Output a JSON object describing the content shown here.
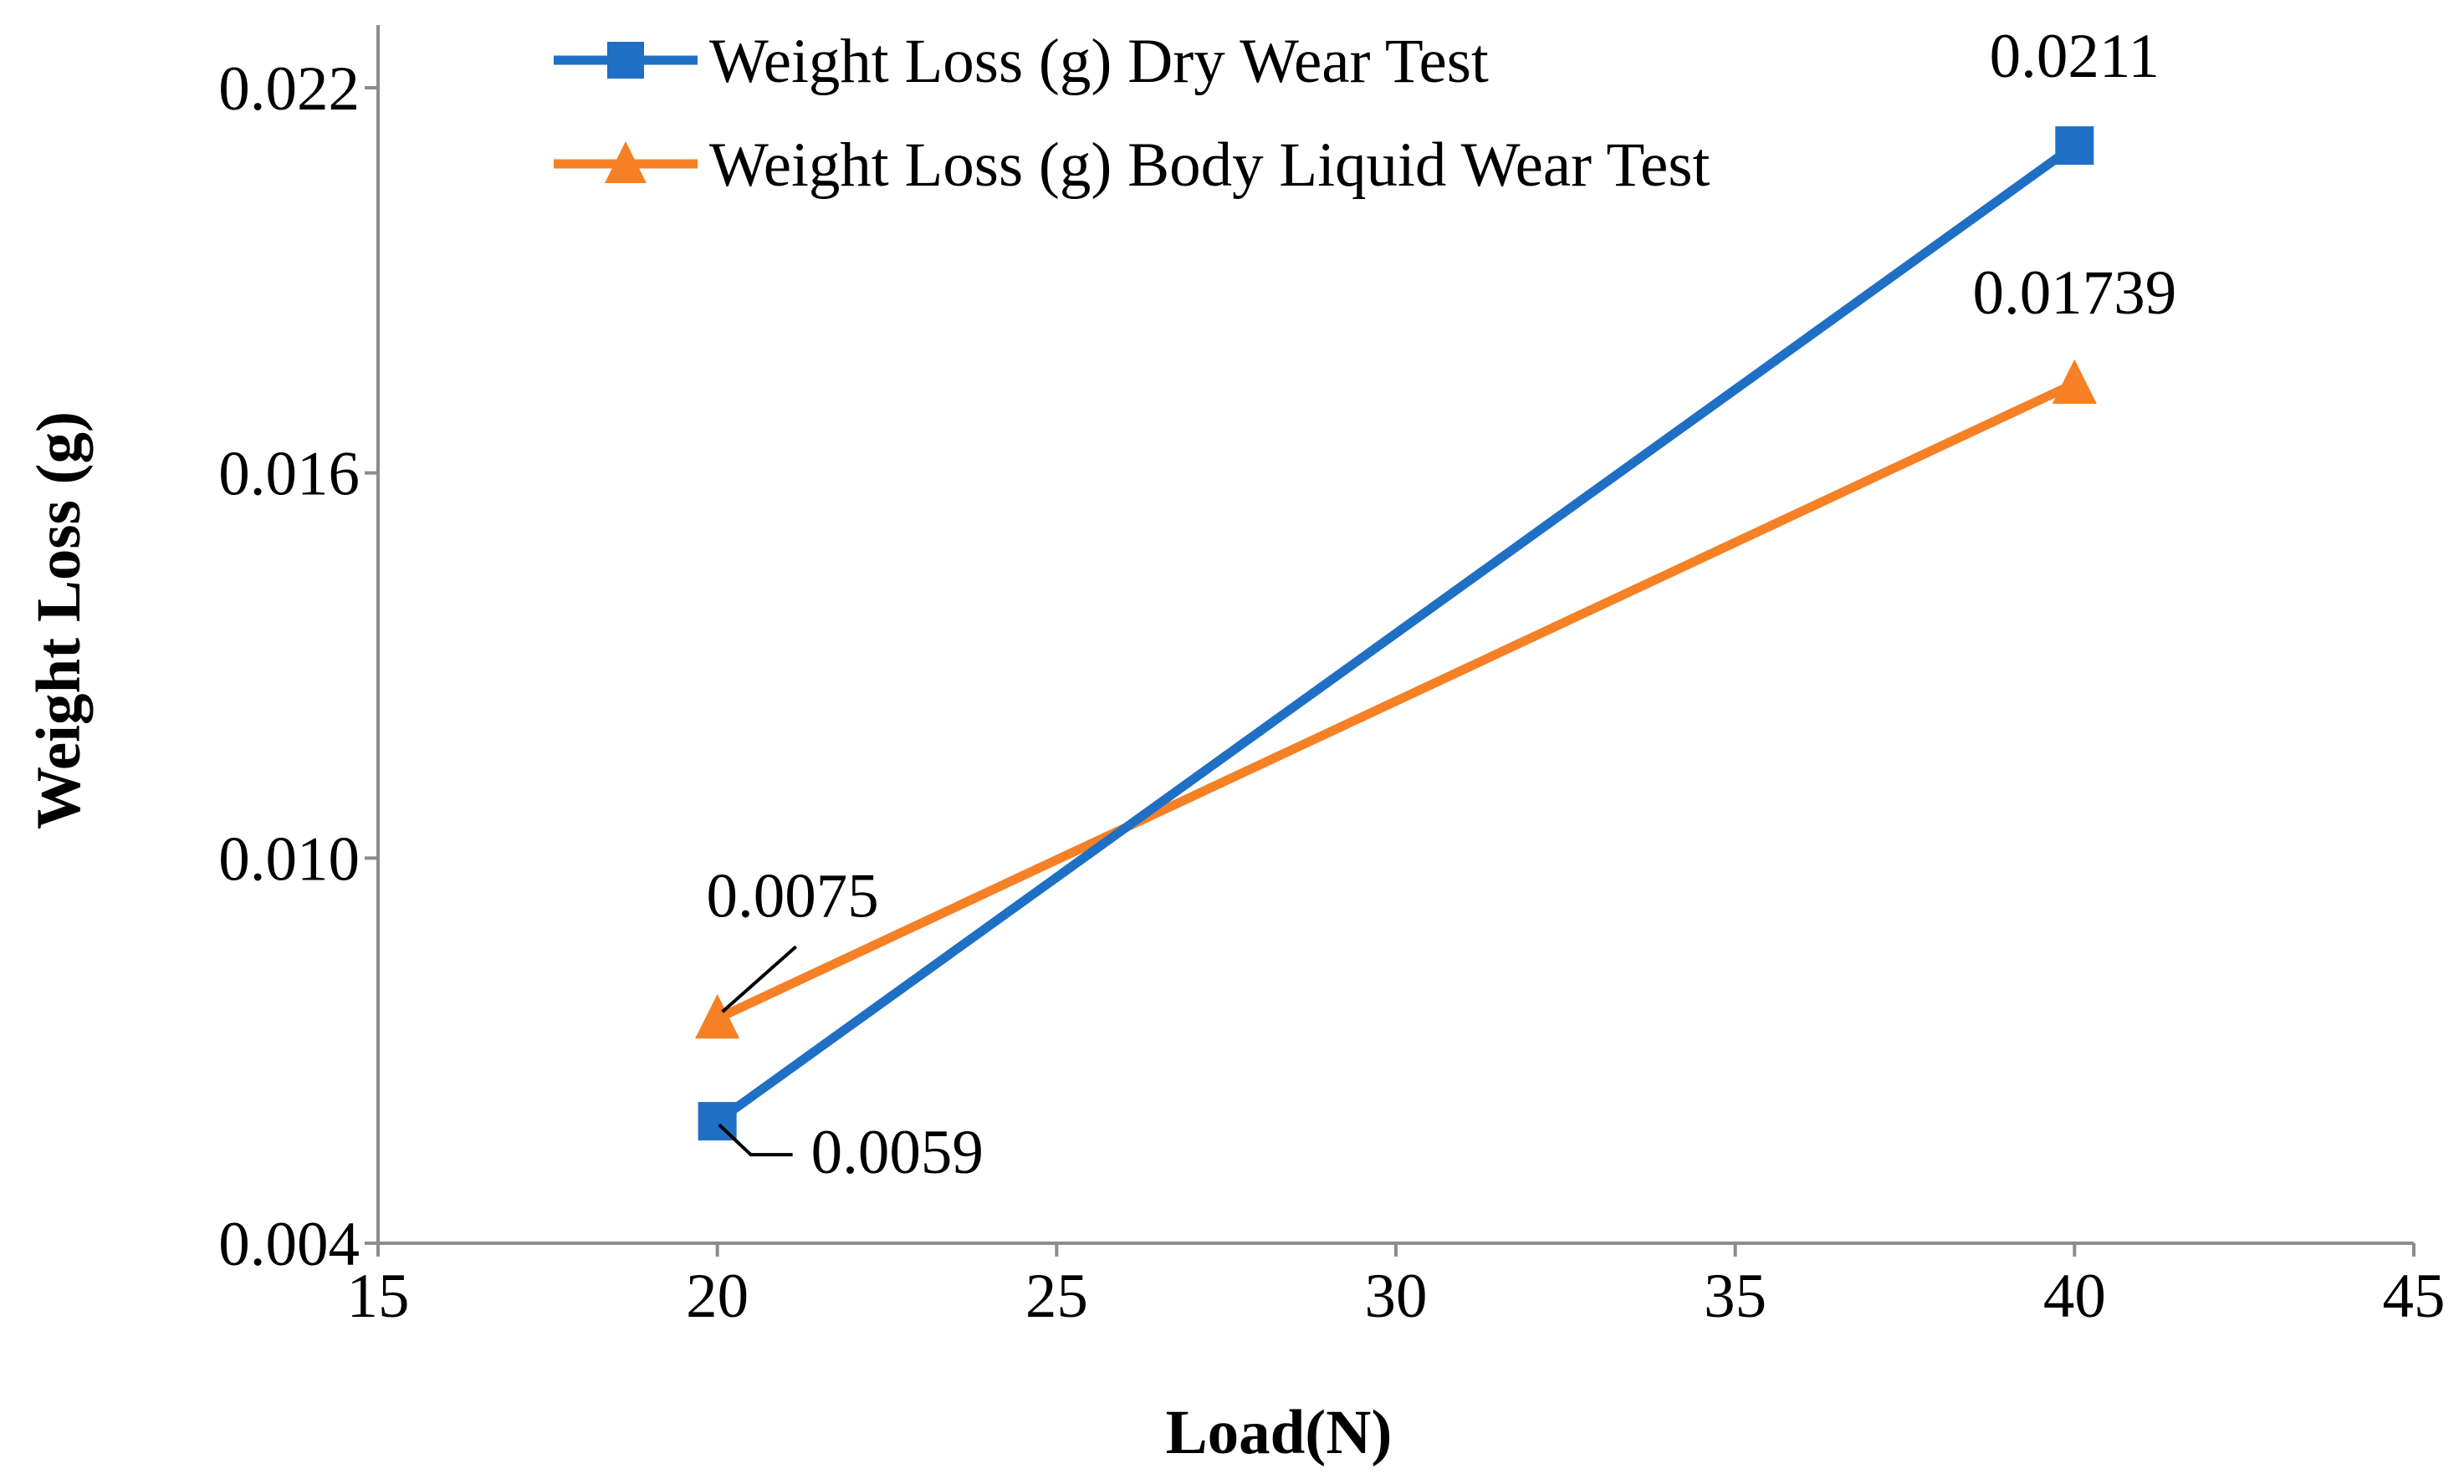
{
  "chart_data": {
    "type": "line",
    "title": "",
    "xlabel": "Load(N)",
    "ylabel": "Weight Loss (g)",
    "xlim": [
      15,
      45
    ],
    "ylim": [
      0.004,
      0.023
    ],
    "xticks": [
      15,
      20,
      25,
      30,
      35,
      40,
      45
    ],
    "yticks": [
      0.004,
      0.01,
      0.016,
      0.022
    ],
    "xtick_labels": [
      "15",
      "20",
      "25",
      "30",
      "35",
      "40",
      "45"
    ],
    "ytick_labels": [
      "0.004",
      "0.010",
      "0.016",
      "0.022"
    ],
    "grid": false,
    "legend_position": "top-center",
    "series": [
      {
        "name": "Weight Loss (g) Dry Wear Test",
        "marker": "square",
        "color": "#1f6fc5",
        "x": [
          20,
          40
        ],
        "y": [
          0.0059,
          0.0211
        ],
        "labels": [
          "0.0059",
          "0.0211"
        ]
      },
      {
        "name": "Weight Loss (g) Body Liquid Wear Test",
        "marker": "triangle",
        "color": "#f58025",
        "x": [
          20,
          40
        ],
        "y": [
          0.0075,
          0.01739
        ],
        "labels": [
          "0.0075",
          "0.01739"
        ]
      }
    ]
  }
}
